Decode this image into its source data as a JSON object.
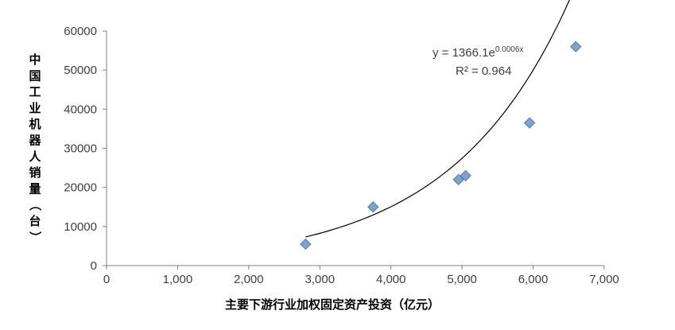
{
  "chart_data": {
    "type": "scatter",
    "xlabel": "主要下游行业加权固定资产投资（亿元）",
    "ylabel": "中国工业机器人销量（台）",
    "xlim": [
      0,
      7000
    ],
    "ylim": [
      0,
      60000
    ],
    "x_ticks": [
      "0",
      "1,000",
      "2,000",
      "3,000",
      "4,000",
      "5,000",
      "6,000",
      "7,000"
    ],
    "y_ticks": [
      "0",
      "10000",
      "20000",
      "30000",
      "40000",
      "50000",
      "60000"
    ],
    "points": [
      {
        "x": 2800,
        "y": 5500
      },
      {
        "x": 3750,
        "y": 15000
      },
      {
        "x": 4950,
        "y": 22000
      },
      {
        "x": 5050,
        "y": 23000
      },
      {
        "x": 5950,
        "y": 36500
      },
      {
        "x": 6600,
        "y": 56000
      }
    ],
    "trendline": {
      "type": "exponential",
      "a": 1366.1,
      "b": 0.0006,
      "x_range": [
        2800,
        6600
      ],
      "equation_main": "y = 1366.1e",
      "equation_exp": "0.0006x",
      "r2_label": "R² = 0.964"
    },
    "grid": false,
    "colors": {
      "marker_fill": "#7DA2CB",
      "marker_stroke": "#4F7DAF",
      "axis": "#7F7F7F",
      "trend": "#000000"
    }
  }
}
